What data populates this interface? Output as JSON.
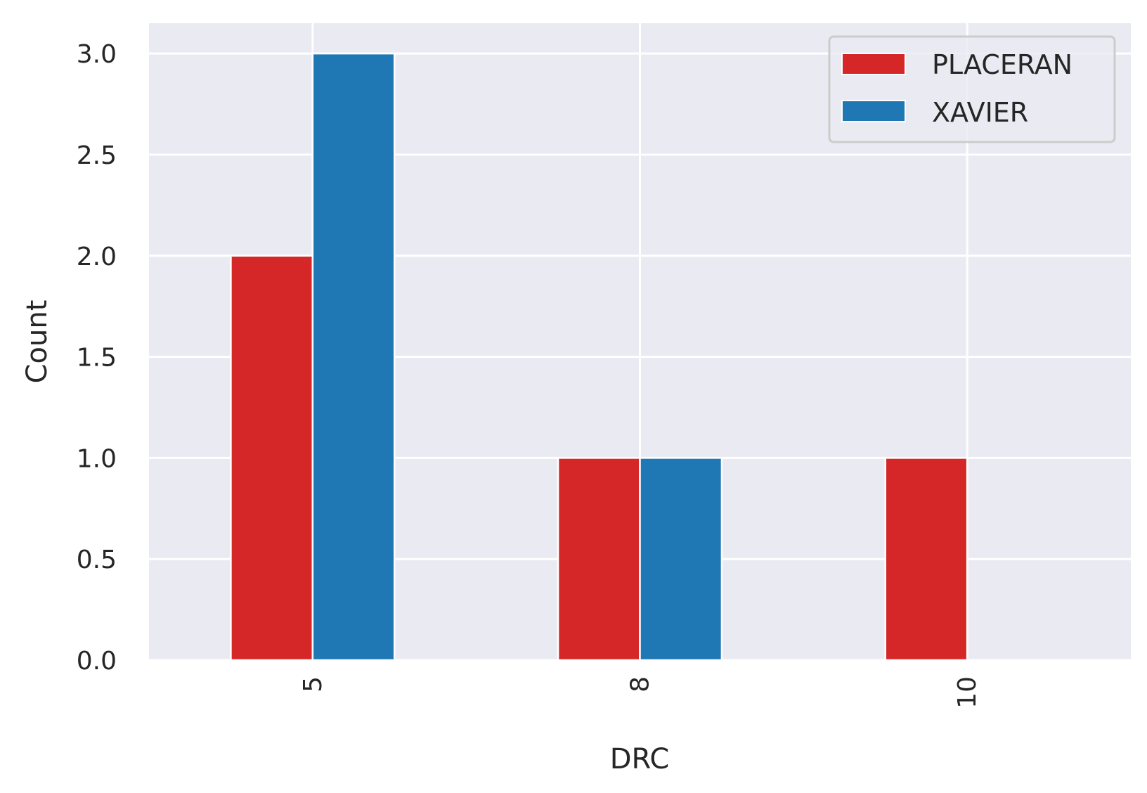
{
  "chart_data": {
    "type": "bar",
    "categories": [
      "5",
      "8",
      "10"
    ],
    "series": [
      {
        "name": "PLACERAN",
        "values": [
          2,
          1,
          1
        ],
        "color": "#d62728"
      },
      {
        "name": "XAVIER",
        "values": [
          3,
          1,
          0
        ],
        "color": "#1f77b4"
      }
    ],
    "xlabel": "DRC",
    "ylabel": "Count",
    "ylim": [
      0,
      3.15
    ],
    "yticks": [
      "0.0",
      "0.5",
      "1.0",
      "1.5",
      "2.0",
      "2.5",
      "3.0"
    ],
    "ytick_values": [
      0,
      0.5,
      1.0,
      1.5,
      2.0,
      2.5,
      3.0
    ],
    "grid": true,
    "legend_position": "top-right",
    "plot_background": "#eaeaf2"
  }
}
